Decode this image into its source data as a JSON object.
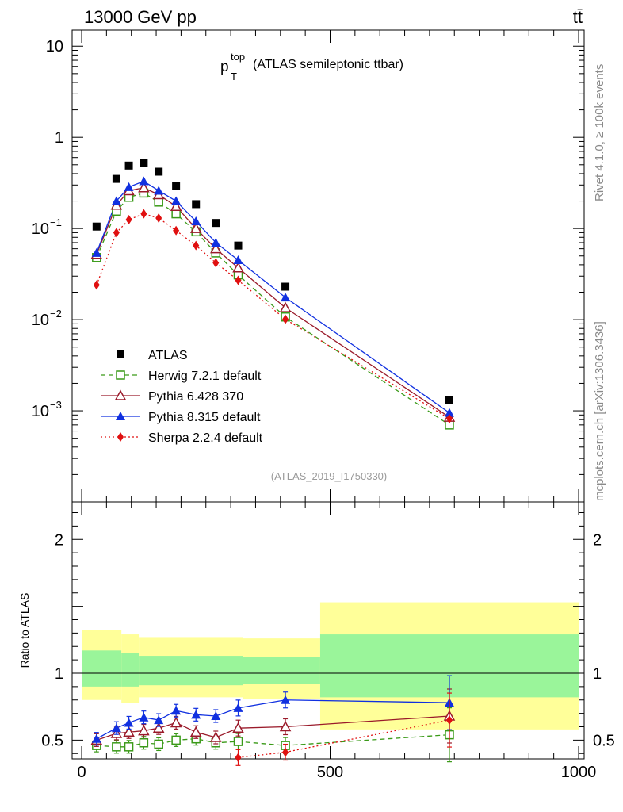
{
  "header": {
    "left": "13000 GeV pp",
    "right": "tt̄"
  },
  "side_labels": {
    "rivet": "Rivet 4.1.0, ≥ 100k events",
    "source": "mcplots.cern.ch [arXiv:1306.3436]"
  },
  "chart_data": [
    {
      "type": "line",
      "panel": "main",
      "title": "(ATLAS semileptonic ttbar)",
      "title_var": "p",
      "title_sup": "top",
      "title_sub": "T",
      "watermark": "(ATLAS_2019_I1750330)",
      "xlabel": "",
      "ylabel": "",
      "xlim": [
        0,
        1000
      ],
      "ylim": [
        0.0001,
        15
      ],
      "yscale": "log",
      "y_tick_labels": [
        {
          "value": 10,
          "base": "10",
          "exp": ""
        },
        {
          "value": 1,
          "base": "1",
          "exp": ""
        },
        {
          "value": 0.1,
          "base": "10",
          "exp": "−1"
        },
        {
          "value": 0.01,
          "base": "10",
          "exp": "−2"
        },
        {
          "value": 0.001,
          "base": "10",
          "exp": "−3"
        }
      ],
      "legend_position": "lower-left",
      "data": {
        "name": "ATLAS",
        "x": [
          30,
          70,
          95,
          125,
          155,
          190,
          230,
          270,
          315,
          410,
          740
        ],
        "y": [
          0.105,
          0.35,
          0.49,
          0.52,
          0.42,
          0.29,
          0.185,
          0.115,
          0.065,
          0.023,
          0.0013
        ]
      },
      "series": [
        {
          "name": "Herwig 7.2.1 default",
          "color": "#3a9a18",
          "dash": "6,4",
          "marker": "open-square",
          "x": [
            30,
            70,
            95,
            125,
            155,
            190,
            230,
            270,
            315,
            410,
            740
          ],
          "y": [
            0.048,
            0.155,
            0.22,
            0.245,
            0.195,
            0.145,
            0.092,
            0.054,
            0.031,
            0.0107,
            0.0007
          ]
        },
        {
          "name": "Pythia 6.428 370",
          "color": "#9a1a2a",
          "dash": "",
          "marker": "open-triangle",
          "x": [
            30,
            70,
            95,
            125,
            155,
            190,
            230,
            270,
            315,
            410,
            740
          ],
          "y": [
            0.052,
            0.18,
            0.26,
            0.28,
            0.235,
            0.175,
            0.1,
            0.06,
            0.037,
            0.0135,
            0.00085
          ]
        },
        {
          "name": "Pythia 8.315 default",
          "color": "#1030e0",
          "dash": "",
          "marker": "filled-triangle",
          "x": [
            30,
            70,
            95,
            125,
            155,
            190,
            230,
            270,
            315,
            410,
            740
          ],
          "y": [
            0.054,
            0.2,
            0.285,
            0.33,
            0.26,
            0.2,
            0.12,
            0.07,
            0.045,
            0.0175,
            0.00095
          ]
        },
        {
          "name": "Sherpa 2.2.4 default",
          "color": "#e01010",
          "dash": "2,3",
          "marker": "filled-diamond",
          "x": [
            30,
            70,
            95,
            125,
            155,
            190,
            230,
            270,
            315,
            410,
            740
          ],
          "y": [
            0.024,
            0.09,
            0.125,
            0.145,
            0.13,
            0.095,
            0.065,
            0.042,
            0.027,
            0.0101,
            0.00082
          ]
        }
      ]
    },
    {
      "type": "line",
      "panel": "ratio",
      "ylabel": "Ratio to ATLAS",
      "xlabel": "",
      "xlim": [
        0,
        1000
      ],
      "ylim": [
        0.36,
        2.28
      ],
      "x_ticks": [
        "0",
        "500",
        "1000"
      ],
      "y_ticks": [
        "0.5",
        "1",
        "2"
      ],
      "bands": {
        "edges": [
          0,
          80,
          115,
          325,
          480,
          1000
        ],
        "inner_lo": [
          0.9,
          0.9,
          0.91,
          0.92,
          0.82
        ],
        "inner_hi": [
          1.17,
          1.15,
          1.13,
          1.12,
          1.29
        ],
        "outer_lo": [
          0.8,
          0.78,
          0.82,
          0.81,
          0.58
        ],
        "outer_hi": [
          1.32,
          1.29,
          1.27,
          1.26,
          1.53
        ],
        "inner_color": "#9af59a",
        "outer_color": "#ffff99"
      },
      "series": [
        {
          "name": "Herwig 7.2.1 default",
          "x": [
            30,
            70,
            95,
            125,
            155,
            190,
            230,
            270,
            315,
            410,
            740
          ],
          "y": [
            0.46,
            0.45,
            0.45,
            0.48,
            0.47,
            0.5,
            0.51,
            0.48,
            0.49,
            0.46,
            0.54
          ]
        },
        {
          "name": "Pythia 6.428 370",
          "x": [
            30,
            70,
            95,
            125,
            155,
            190,
            230,
            270,
            315,
            410,
            740
          ],
          "y": [
            0.5,
            0.55,
            0.56,
            0.57,
            0.59,
            0.63,
            0.56,
            0.52,
            0.59,
            0.6,
            0.68
          ]
        },
        {
          "name": "Pythia 8.315 default",
          "x": [
            30,
            70,
            95,
            125,
            155,
            190,
            230,
            270,
            315,
            410,
            740
          ],
          "y": [
            0.51,
            0.59,
            0.63,
            0.67,
            0.65,
            0.72,
            0.69,
            0.68,
            0.74,
            0.8,
            0.78
          ]
        },
        {
          "name": "Sherpa 2.2.4 default",
          "x": [
            315,
            410,
            740
          ],
          "y": [
            0.37,
            0.41,
            0.65
          ]
        }
      ]
    }
  ]
}
